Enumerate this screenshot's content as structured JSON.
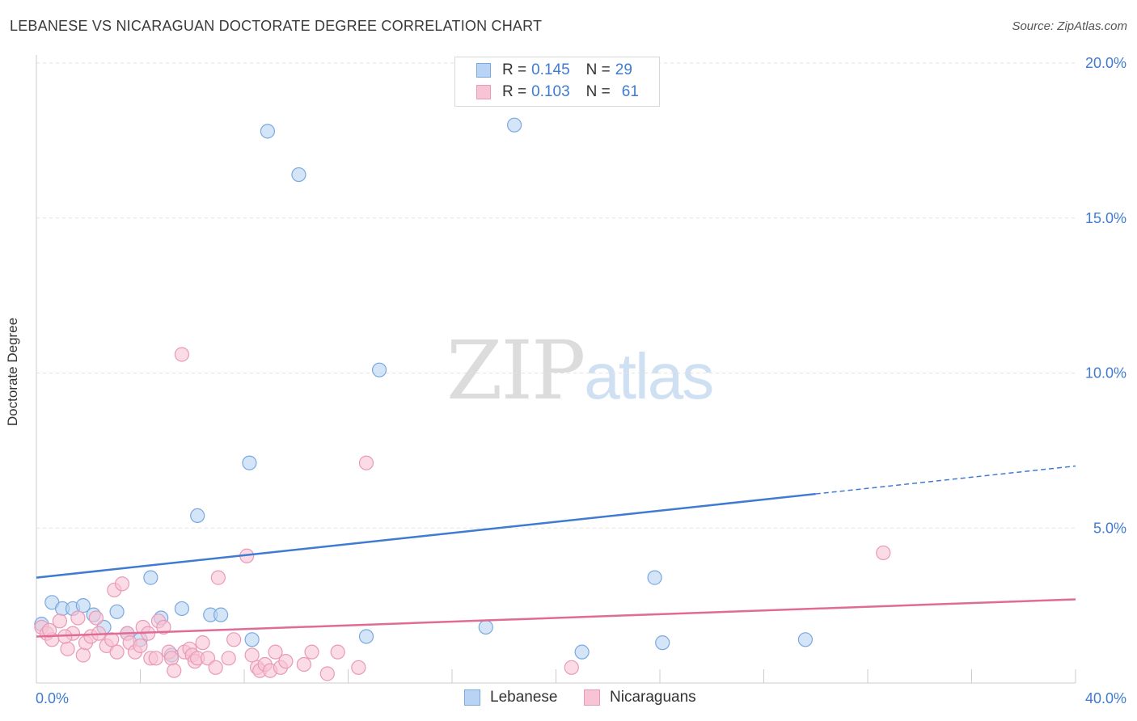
{
  "title": "LEBANESE VS NICARAGUAN DOCTORATE DEGREE CORRELATION CHART",
  "source": "Source: ZipAtlas.com",
  "watermark": {
    "zip": "ZIP",
    "atlas": "atlas"
  },
  "legend_top": [
    {
      "r_label": "R = ",
      "r_value": "0.145",
      "n_label": "N = ",
      "n_value": "29"
    },
    {
      "r_label": "R = ",
      "r_value": "0.103",
      "n_label": "N = ",
      "n_value": "61"
    }
  ],
  "legend_bottom": [
    "Lebanese",
    "Nicaraguans"
  ],
  "colors": {
    "blue": "#3f7bd1",
    "blue_fill": "#b8d3f3",
    "pink": "#e06b96",
    "pink_fill": "#f8c3d4",
    "axis_text": "#3f7bd1",
    "grid": "#e2e2e2"
  },
  "chart_data": {
    "type": "scatter",
    "title": "LEBANESE VS NICARAGUAN DOCTORATE DEGREE CORRELATION CHART",
    "xlabel": "",
    "ylabel": "Doctorate Degree",
    "xlim": [
      0,
      40
    ],
    "ylim": [
      0,
      20
    ],
    "x_ticks": [
      4,
      8,
      12,
      16,
      20,
      24,
      28,
      32,
      36,
      40
    ],
    "x_tick_labels": [
      "0.0%",
      "40.0%"
    ],
    "y_ticks": [
      5,
      10,
      15,
      20
    ],
    "y_tick_labels": [
      "5.0%",
      "10.0%",
      "15.0%",
      "20.0%"
    ],
    "series": [
      {
        "name": "Lebanese",
        "r": 0.145,
        "n": 29,
        "points": [
          [
            0.2,
            1.9
          ],
          [
            0.6,
            2.6
          ],
          [
            1.0,
            2.4
          ],
          [
            1.4,
            2.4
          ],
          [
            1.8,
            2.5
          ],
          [
            2.2,
            2.2
          ],
          [
            2.6,
            1.8
          ],
          [
            3.1,
            2.3
          ],
          [
            3.5,
            1.6
          ],
          [
            4.0,
            1.4
          ],
          [
            4.4,
            3.4
          ],
          [
            4.8,
            2.1
          ],
          [
            5.2,
            0.9
          ],
          [
            5.6,
            2.4
          ],
          [
            6.2,
            5.4
          ],
          [
            6.7,
            2.2
          ],
          [
            7.1,
            2.2
          ],
          [
            8.2,
            7.1
          ],
          [
            8.3,
            1.4
          ],
          [
            8.9,
            17.8
          ],
          [
            10.1,
            16.4
          ],
          [
            13.2,
            10.1
          ],
          [
            12.7,
            1.5
          ],
          [
            17.3,
            1.8
          ],
          [
            18.4,
            18.0
          ],
          [
            21.0,
            1.0
          ],
          [
            23.8,
            3.4
          ],
          [
            24.1,
            1.3
          ],
          [
            29.6,
            1.4
          ]
        ],
        "trend": {
          "x": [
            0,
            30,
            40
          ],
          "y": [
            3.4,
            6.1,
            7.0
          ],
          "solid_until": 30
        }
      },
      {
        "name": "Nicaraguans",
        "r": 0.103,
        "n": 61,
        "points": [
          [
            0.2,
            1.8
          ],
          [
            0.4,
            1.6
          ],
          [
            0.6,
            1.4
          ],
          [
            0.9,
            2.0
          ],
          [
            1.2,
            1.1
          ],
          [
            1.4,
            1.6
          ],
          [
            1.6,
            2.1
          ],
          [
            1.8,
            0.9
          ],
          [
            1.9,
            1.3
          ],
          [
            2.1,
            1.5
          ],
          [
            2.3,
            2.1
          ],
          [
            2.4,
            1.6
          ],
          [
            2.7,
            1.2
          ],
          [
            3.0,
            3.0
          ],
          [
            3.1,
            1.0
          ],
          [
            3.3,
            3.2
          ],
          [
            3.5,
            1.6
          ],
          [
            3.6,
            1.3
          ],
          [
            3.8,
            1.0
          ],
          [
            4.0,
            1.2
          ],
          [
            4.1,
            1.8
          ],
          [
            4.3,
            1.6
          ],
          [
            4.4,
            0.8
          ],
          [
            4.6,
            0.8
          ],
          [
            4.7,
            2.0
          ],
          [
            4.9,
            1.8
          ],
          [
            5.1,
            1.0
          ],
          [
            5.2,
            0.8
          ],
          [
            5.3,
            0.4
          ],
          [
            5.6,
            10.6
          ],
          [
            5.7,
            1.0
          ],
          [
            5.9,
            1.1
          ],
          [
            6.0,
            0.9
          ],
          [
            6.1,
            0.7
          ],
          [
            6.2,
            0.8
          ],
          [
            6.4,
            1.3
          ],
          [
            6.6,
            0.8
          ],
          [
            6.9,
            0.5
          ],
          [
            7.0,
            3.4
          ],
          [
            7.4,
            0.8
          ],
          [
            7.6,
            1.4
          ],
          [
            8.1,
            4.1
          ],
          [
            8.3,
            0.9
          ],
          [
            8.5,
            0.5
          ],
          [
            8.6,
            0.4
          ],
          [
            8.8,
            0.6
          ],
          [
            9.0,
            0.4
          ],
          [
            9.2,
            1.0
          ],
          [
            9.4,
            0.5
          ],
          [
            9.6,
            0.7
          ],
          [
            10.3,
            0.6
          ],
          [
            10.6,
            1.0
          ],
          [
            11.2,
            0.3
          ],
          [
            11.6,
            1.0
          ],
          [
            12.4,
            0.5
          ],
          [
            12.7,
            7.1
          ],
          [
            20.6,
            0.5
          ],
          [
            32.6,
            4.2
          ],
          [
            2.9,
            1.4
          ],
          [
            1.1,
            1.5
          ],
          [
            0.5,
            1.7
          ]
        ],
        "trend": {
          "x": [
            0,
            40
          ],
          "y": [
            1.5,
            2.7
          ]
        }
      }
    ]
  }
}
